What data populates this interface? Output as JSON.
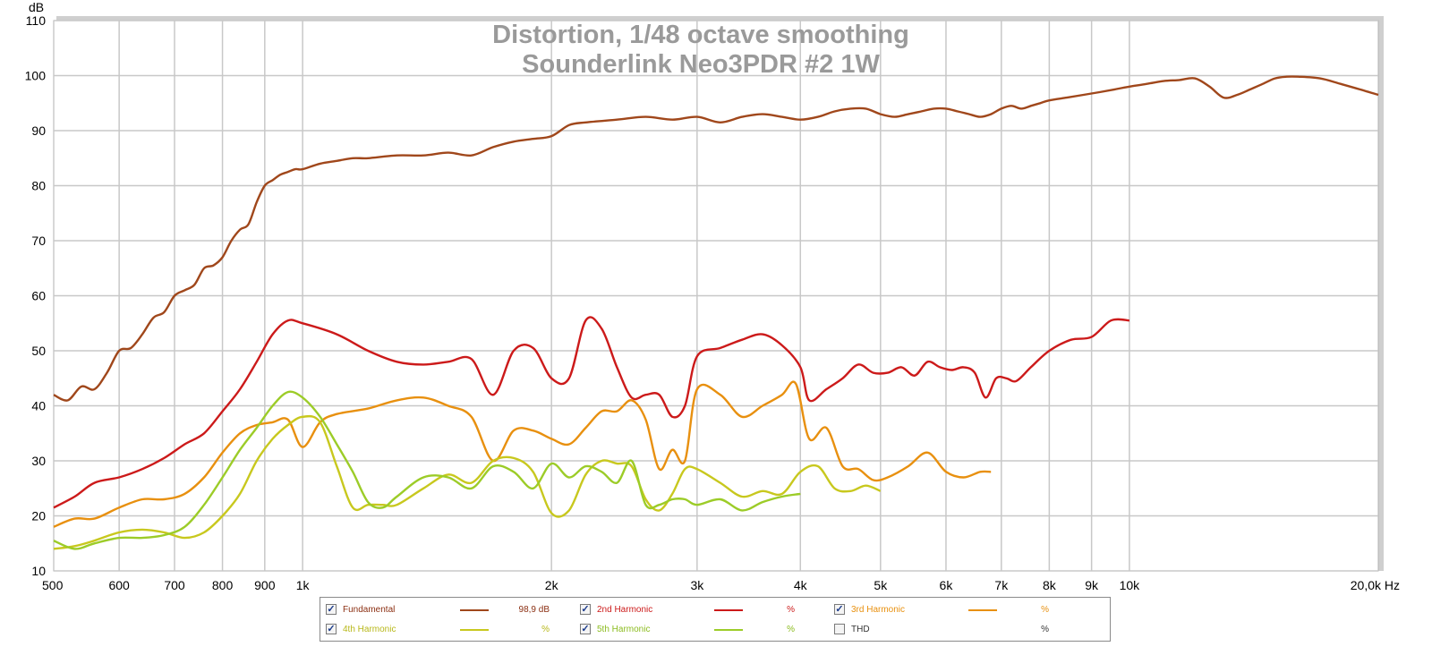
{
  "chart_data": {
    "type": "line",
    "title": "Distortion, 1/48 octave smoothing",
    "subtitle": "Sounderlink Neo3PDR #2 1W",
    "ylabel": "dB",
    "xunit": "Hz",
    "x_scale": "log",
    "xlim": [
      500,
      20000
    ],
    "ylim": [
      10,
      110
    ],
    "grid": true,
    "x_ticks": [
      {
        "v": 500,
        "label": "500"
      },
      {
        "v": 600,
        "label": "600"
      },
      {
        "v": 700,
        "label": "700"
      },
      {
        "v": 800,
        "label": "800"
      },
      {
        "v": 900,
        "label": "900"
      },
      {
        "v": 1000,
        "label": "1k"
      },
      {
        "v": 2000,
        "label": "2k"
      },
      {
        "v": 3000,
        "label": "3k"
      },
      {
        "v": 4000,
        "label": "4k"
      },
      {
        "v": 5000,
        "label": "5k"
      },
      {
        "v": 6000,
        "label": "6k"
      },
      {
        "v": 7000,
        "label": "7k"
      },
      {
        "v": 8000,
        "label": "8k"
      },
      {
        "v": 9000,
        "label": "9k"
      },
      {
        "v": 10000,
        "label": "10k"
      },
      {
        "v": 20000,
        "label": "20,0k Hz"
      }
    ],
    "y_ticks": [
      10,
      20,
      30,
      40,
      50,
      60,
      70,
      80,
      90,
      100,
      110
    ],
    "series": [
      {
        "name": "Fundamental",
        "color": "#a0471b",
        "x": [
          500,
          520,
          540,
          560,
          580,
          600,
          620,
          640,
          660,
          680,
          700,
          720,
          740,
          760,
          780,
          800,
          820,
          840,
          860,
          880,
          900,
          920,
          940,
          960,
          980,
          1000,
          1050,
          1100,
          1150,
          1200,
          1300,
          1400,
          1500,
          1600,
          1700,
          1800,
          1900,
          2000,
          2100,
          2200,
          2400,
          2600,
          2800,
          3000,
          3200,
          3400,
          3600,
          3800,
          4000,
          4200,
          4400,
          4600,
          4800,
          5000,
          5200,
          5400,
          5600,
          5800,
          6000,
          6200,
          6400,
          6600,
          6800,
          7000,
          7200,
          7400,
          7600,
          7800,
          8000,
          8400,
          8800,
          9200,
          9600,
          10000,
          10500,
          11000,
          11500,
          12000,
          12500,
          13000,
          13500,
          14000,
          14500,
          15000,
          15500,
          16000,
          17000,
          18000,
          19000,
          20000
        ],
        "y": [
          42,
          41,
          43.5,
          43,
          46,
          50,
          50.5,
          53,
          56,
          57,
          60,
          61,
          62,
          65,
          65.5,
          67,
          70,
          72,
          73,
          77,
          80,
          81,
          82,
          82.5,
          83,
          83,
          84,
          84.5,
          85,
          85,
          85.5,
          85.5,
          86,
          85.5,
          87,
          88,
          88.5,
          89,
          91,
          91.5,
          92,
          92.5,
          92,
          92.5,
          91.5,
          92.5,
          93,
          92.5,
          92,
          92.5,
          93.5,
          94,
          94,
          93,
          92.5,
          93,
          93.5,
          94,
          94,
          93.5,
          93,
          92.5,
          93,
          94,
          94.5,
          94,
          94.5,
          95,
          95.5,
          96,
          96.5,
          97,
          97.5,
          98,
          98.5,
          99,
          99.2,
          99.5,
          98,
          96,
          96.5,
          97.5,
          98.5,
          99.5,
          99.8,
          99.8,
          99.5,
          98.5,
          97.5,
          96.5
        ]
      },
      {
        "name": "2nd Harmonic",
        "color": "#cc1a1a",
        "x": [
          500,
          530,
          560,
          600,
          640,
          680,
          720,
          760,
          800,
          840,
          880,
          920,
          960,
          1000,
          1100,
          1200,
          1300,
          1400,
          1500,
          1600,
          1700,
          1800,
          1900,
          2000,
          2100,
          2200,
          2300,
          2400,
          2500,
          2600,
          2700,
          2800,
          2900,
          3000,
          3200,
          3400,
          3600,
          3800,
          4000,
          4100,
          4300,
          4500,
          4700,
          4900,
          5100,
          5300,
          5500,
          5700,
          5900,
          6100,
          6300,
          6500,
          6700,
          6900,
          7100,
          7300,
          7600,
          8000,
          8500,
          9000,
          9500,
          10000
        ],
        "y": [
          21.5,
          23.5,
          26,
          27,
          28.5,
          30.5,
          33,
          35,
          39,
          43,
          48,
          53,
          55.5,
          55,
          53,
          50,
          48,
          47.5,
          48,
          48.5,
          42,
          50,
          50.5,
          45,
          45,
          55.5,
          54,
          47,
          41.5,
          42,
          42,
          38,
          40,
          49,
          50.5,
          52,
          53,
          51,
          47,
          41,
          43,
          45,
          47.5,
          46,
          46,
          47,
          45.5,
          48,
          47,
          46.5,
          47,
          46,
          41.5,
          45,
          45,
          44.5,
          47,
          50,
          52,
          52.5,
          55.5,
          55.5
        ]
      },
      {
        "name": "3rd Harmonic",
        "color": "#e8900f",
        "x": [
          500,
          530,
          560,
          600,
          640,
          680,
          720,
          760,
          800,
          840,
          880,
          920,
          960,
          1000,
          1050,
          1100,
          1200,
          1300,
          1400,
          1500,
          1600,
          1700,
          1800,
          1900,
          2000,
          2100,
          2200,
          2300,
          2400,
          2500,
          2600,
          2700,
          2800,
          2900,
          3000,
          3200,
          3400,
          3600,
          3800,
          3950,
          4100,
          4300,
          4500,
          4700,
          4900,
          5100,
          5400,
          5700,
          6000,
          6300,
          6600,
          6800
        ],
        "y": [
          18,
          19.5,
          19.5,
          21.5,
          23,
          23,
          24,
          27,
          31.5,
          35,
          36.5,
          37,
          37.5,
          32.5,
          37,
          38.5,
          39.5,
          41,
          41.5,
          40,
          38,
          30,
          35.5,
          35.5,
          34,
          33,
          36,
          39,
          39,
          41,
          37.5,
          28.5,
          32,
          30,
          43,
          42,
          38,
          40,
          42,
          44,
          34,
          36,
          29,
          28.5,
          26.5,
          27,
          29,
          31.5,
          28,
          27,
          28,
          28
        ]
      },
      {
        "name": "4th Harmonic",
        "color": "#c8c81e",
        "x": [
          500,
          530,
          560,
          600,
          640,
          680,
          720,
          760,
          800,
          840,
          880,
          920,
          960,
          1000,
          1050,
          1100,
          1150,
          1200,
          1250,
          1300,
          1400,
          1500,
          1600,
          1700,
          1800,
          1900,
          2000,
          2100,
          2200,
          2300,
          2400,
          2500,
          2600,
          2700,
          2800,
          2900,
          3000,
          3200,
          3400,
          3600,
          3800,
          4000,
          4200,
          4400,
          4600,
          4800,
          5000
        ],
        "y": [
          14,
          14.5,
          15.5,
          17,
          17.5,
          17,
          16,
          17,
          20,
          24,
          30,
          34,
          36.5,
          38,
          37,
          29,
          21.5,
          22,
          22,
          22,
          25,
          27.5,
          26,
          30,
          30.5,
          28,
          20.5,
          21,
          27.5,
          30,
          29.5,
          29,
          23,
          21,
          24,
          28.5,
          28.5,
          26,
          23.5,
          24.5,
          24,
          28,
          29,
          25,
          24.5,
          25.5,
          24.5
        ]
      },
      {
        "name": "5th Harmonic",
        "color": "#9ccc28",
        "x": [
          500,
          530,
          560,
          600,
          640,
          680,
          720,
          760,
          800,
          840,
          880,
          920,
          960,
          1000,
          1050,
          1100,
          1150,
          1200,
          1250,
          1300,
          1400,
          1500,
          1600,
          1700,
          1800,
          1900,
          2000,
          2100,
          2200,
          2300,
          2400,
          2500,
          2600,
          2700,
          2800,
          2900,
          3000,
          3200,
          3400,
          3600,
          3800,
          4000
        ],
        "y": [
          15.5,
          14,
          15,
          16,
          16,
          16.5,
          18,
          22,
          27,
          32,
          36,
          40,
          42.5,
          41.5,
          38,
          33,
          28,
          22.5,
          21.5,
          23.5,
          27,
          27,
          25,
          29,
          28,
          25,
          29.5,
          27,
          29,
          28,
          26,
          30,
          22,
          22,
          23,
          23,
          22,
          23,
          21,
          22.5,
          23.5,
          24
        ]
      },
      {
        "name": "THD",
        "color": "#888888",
        "x": [],
        "y": []
      }
    ],
    "legend": [
      {
        "label": "Fundamental",
        "checked": true,
        "value": "98,9 dB",
        "color": "#a0471b"
      },
      {
        "label": "2nd Harmonic",
        "checked": true,
        "value": "%",
        "color": "#cc1a1a"
      },
      {
        "label": "3rd Harmonic",
        "checked": true,
        "value": "%",
        "color": "#e8900f"
      },
      {
        "label": "4th Harmonic",
        "checked": true,
        "value": "%",
        "color": "#c8c81e"
      },
      {
        "label": "5th Harmonic",
        "checked": true,
        "value": "%",
        "color": "#9ccc28"
      },
      {
        "label": "THD",
        "checked": false,
        "value": "%",
        "color": null
      }
    ]
  }
}
